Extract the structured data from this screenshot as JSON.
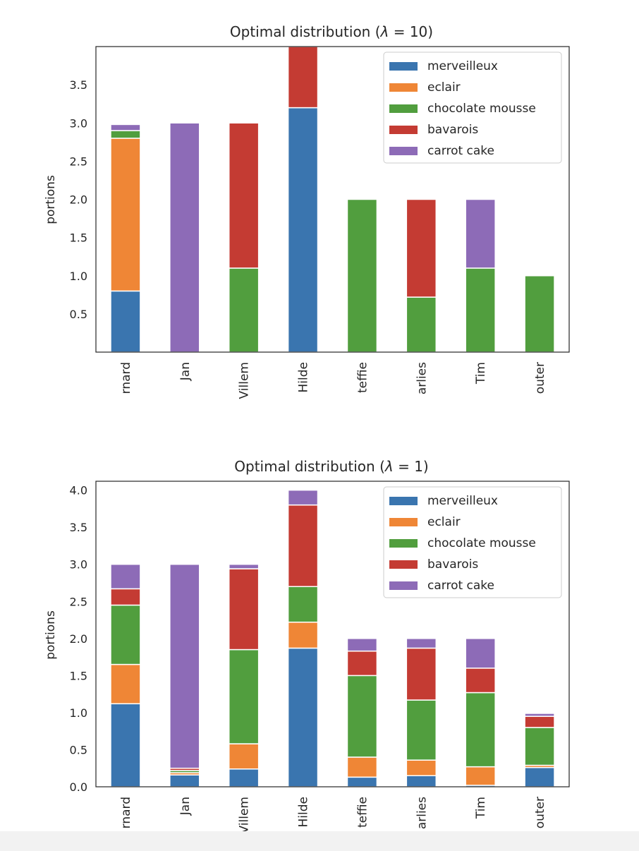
{
  "chart_data": [
    {
      "type": "bar",
      "stacked": true,
      "title_prefix": "Optimal distribution (",
      "lambda_symbol": "λ",
      "lambda_text": " = 10",
      "title_suffix": ")",
      "ylabel": "portions",
      "ylim": [
        0,
        4.0
      ],
      "yticks": [
        "0.5",
        "1.0",
        "1.5",
        "2.0",
        "2.5",
        "3.0",
        "3.5"
      ],
      "categories": [
        "rnard",
        "Jan",
        "Villem",
        "Hilde",
        "teffie",
        "arlies",
        "Tim",
        "outer"
      ],
      "legend_position": "upper right",
      "series": [
        {
          "name": "merveilleux",
          "color": "#3a75af",
          "values": [
            0.8,
            0,
            0,
            3.2,
            0,
            0,
            0,
            0
          ]
        },
        {
          "name": "eclair",
          "color": "#ef8636",
          "values": [
            2.0,
            0,
            0,
            0,
            0,
            0,
            0,
            0
          ]
        },
        {
          "name": "chocolate mousse",
          "color": "#519e3e",
          "values": [
            0.1,
            0,
            1.1,
            0,
            2.0,
            0.72,
            1.1,
            1.0
          ]
        },
        {
          "name": "bavarois",
          "color": "#c43b33",
          "values": [
            0,
            0,
            1.9,
            0.8,
            0,
            1.28,
            0,
            0
          ]
        },
        {
          "name": "carrot cake",
          "color": "#8d6bb7",
          "values": [
            0.08,
            3.0,
            0,
            0,
            0,
            0,
            0.9,
            0
          ]
        }
      ]
    },
    {
      "type": "bar",
      "stacked": true,
      "title_prefix": "Optimal distribution (",
      "lambda_symbol": "λ",
      "lambda_text": " = 1",
      "title_suffix": ")",
      "ylabel": "portions",
      "ylim": [
        0,
        4.12
      ],
      "yticks": [
        "0.0",
        "0.5",
        "1.0",
        "1.5",
        "2.0",
        "2.5",
        "3.0",
        "3.5",
        "4.0"
      ],
      "categories": [
        "rnard",
        "Jan",
        "Villem",
        "Hilde",
        "teffie",
        "arlies",
        "Tim",
        "outer"
      ],
      "legend_position": "upper right",
      "series": [
        {
          "name": "merveilleux",
          "color": "#3a75af",
          "values": [
            1.12,
            0.16,
            0.24,
            1.87,
            0.13,
            0.15,
            0.02,
            0.26
          ]
        },
        {
          "name": "eclair",
          "color": "#ef8636",
          "values": [
            0.53,
            0.03,
            0.34,
            0.35,
            0.27,
            0.21,
            0.25,
            0.03
          ]
        },
        {
          "name": "chocolate mousse",
          "color": "#519e3e",
          "values": [
            0.8,
            0.03,
            1.27,
            0.48,
            1.1,
            0.81,
            1.0,
            0.51
          ]
        },
        {
          "name": "bavarois",
          "color": "#c43b33",
          "values": [
            0.22,
            0.03,
            1.09,
            1.1,
            0.33,
            0.7,
            0.33,
            0.15
          ]
        },
        {
          "name": "carrot cake",
          "color": "#8d6bb7",
          "values": [
            0.33,
            2.75,
            0.06,
            0.2,
            0.17,
            0.13,
            0.4,
            0.04
          ]
        }
      ]
    }
  ]
}
